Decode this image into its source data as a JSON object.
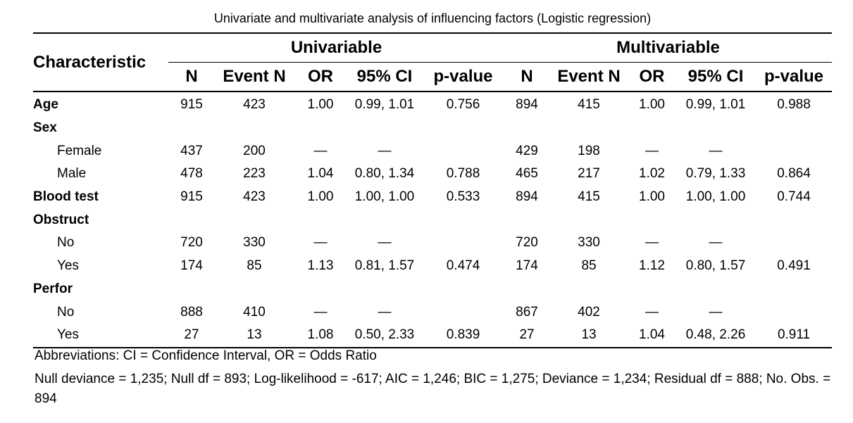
{
  "caption": "Univariate and multivariate analysis of influencing factors (Logistic regression)",
  "header": {
    "characteristic": "Characteristic",
    "group1": "Univariable",
    "group2": "Multivariable",
    "columns": [
      "N",
      "Event N",
      "OR",
      "95% CI",
      "p-value",
      "N",
      "Event N",
      "OR",
      "95% CI",
      "p-value"
    ]
  },
  "rows": [
    {
      "label": "Age",
      "bold": true,
      "indent": false,
      "cells": [
        "915",
        "423",
        "1.00",
        "0.99, 1.01",
        "0.756",
        "894",
        "415",
        "1.00",
        "0.99, 1.01",
        "0.988"
      ]
    },
    {
      "label": "Sex",
      "bold": true,
      "indent": false,
      "cells": [
        "",
        "",
        "",
        "",
        "",
        "",
        "",
        "",
        "",
        ""
      ]
    },
    {
      "label": "Female",
      "bold": false,
      "indent": true,
      "cells": [
        "437",
        "200",
        "—",
        "—",
        "",
        "429",
        "198",
        "—",
        "—",
        ""
      ]
    },
    {
      "label": "Male",
      "bold": false,
      "indent": true,
      "cells": [
        "478",
        "223",
        "1.04",
        "0.80, 1.34",
        "0.788",
        "465",
        "217",
        "1.02",
        "0.79, 1.33",
        "0.864"
      ]
    },
    {
      "label": "Blood test",
      "bold": true,
      "indent": false,
      "cells": [
        "915",
        "423",
        "1.00",
        "1.00, 1.00",
        "0.533",
        "894",
        "415",
        "1.00",
        "1.00, 1.00",
        "0.744"
      ]
    },
    {
      "label": "Obstruct",
      "bold": true,
      "indent": false,
      "cells": [
        "",
        "",
        "",
        "",
        "",
        "",
        "",
        "",
        "",
        ""
      ]
    },
    {
      "label": "No",
      "bold": false,
      "indent": true,
      "cells": [
        "720",
        "330",
        "—",
        "—",
        "",
        "720",
        "330",
        "—",
        "—",
        ""
      ]
    },
    {
      "label": "Yes",
      "bold": false,
      "indent": true,
      "cells": [
        "174",
        "85",
        "1.13",
        "0.81, 1.57",
        "0.474",
        "174",
        "85",
        "1.12",
        "0.80, 1.57",
        "0.491"
      ]
    },
    {
      "label": "Perfor",
      "bold": true,
      "indent": false,
      "cells": [
        "",
        "",
        "",
        "",
        "",
        "",
        "",
        "",
        "",
        ""
      ]
    },
    {
      "label": "No",
      "bold": false,
      "indent": true,
      "cells": [
        "888",
        "410",
        "—",
        "—",
        "",
        "867",
        "402",
        "—",
        "—",
        ""
      ]
    },
    {
      "label": "Yes",
      "bold": false,
      "indent": true,
      "cells": [
        "27",
        "13",
        "1.08",
        "0.50, 2.33",
        "0.839",
        "27",
        "13",
        "1.04",
        "0.48, 2.26",
        "0.911"
      ]
    }
  ],
  "footnotes": {
    "abbreviations": "Abbreviations: CI = Confidence Interval, OR = Odds Ratio",
    "stats": "Null deviance = 1,235; Null df = 893; Log-likelihood = -617; AIC = 1,246; BIC = 1,275; Deviance = 1,234; Residual df = 888; No. Obs. = 894"
  }
}
